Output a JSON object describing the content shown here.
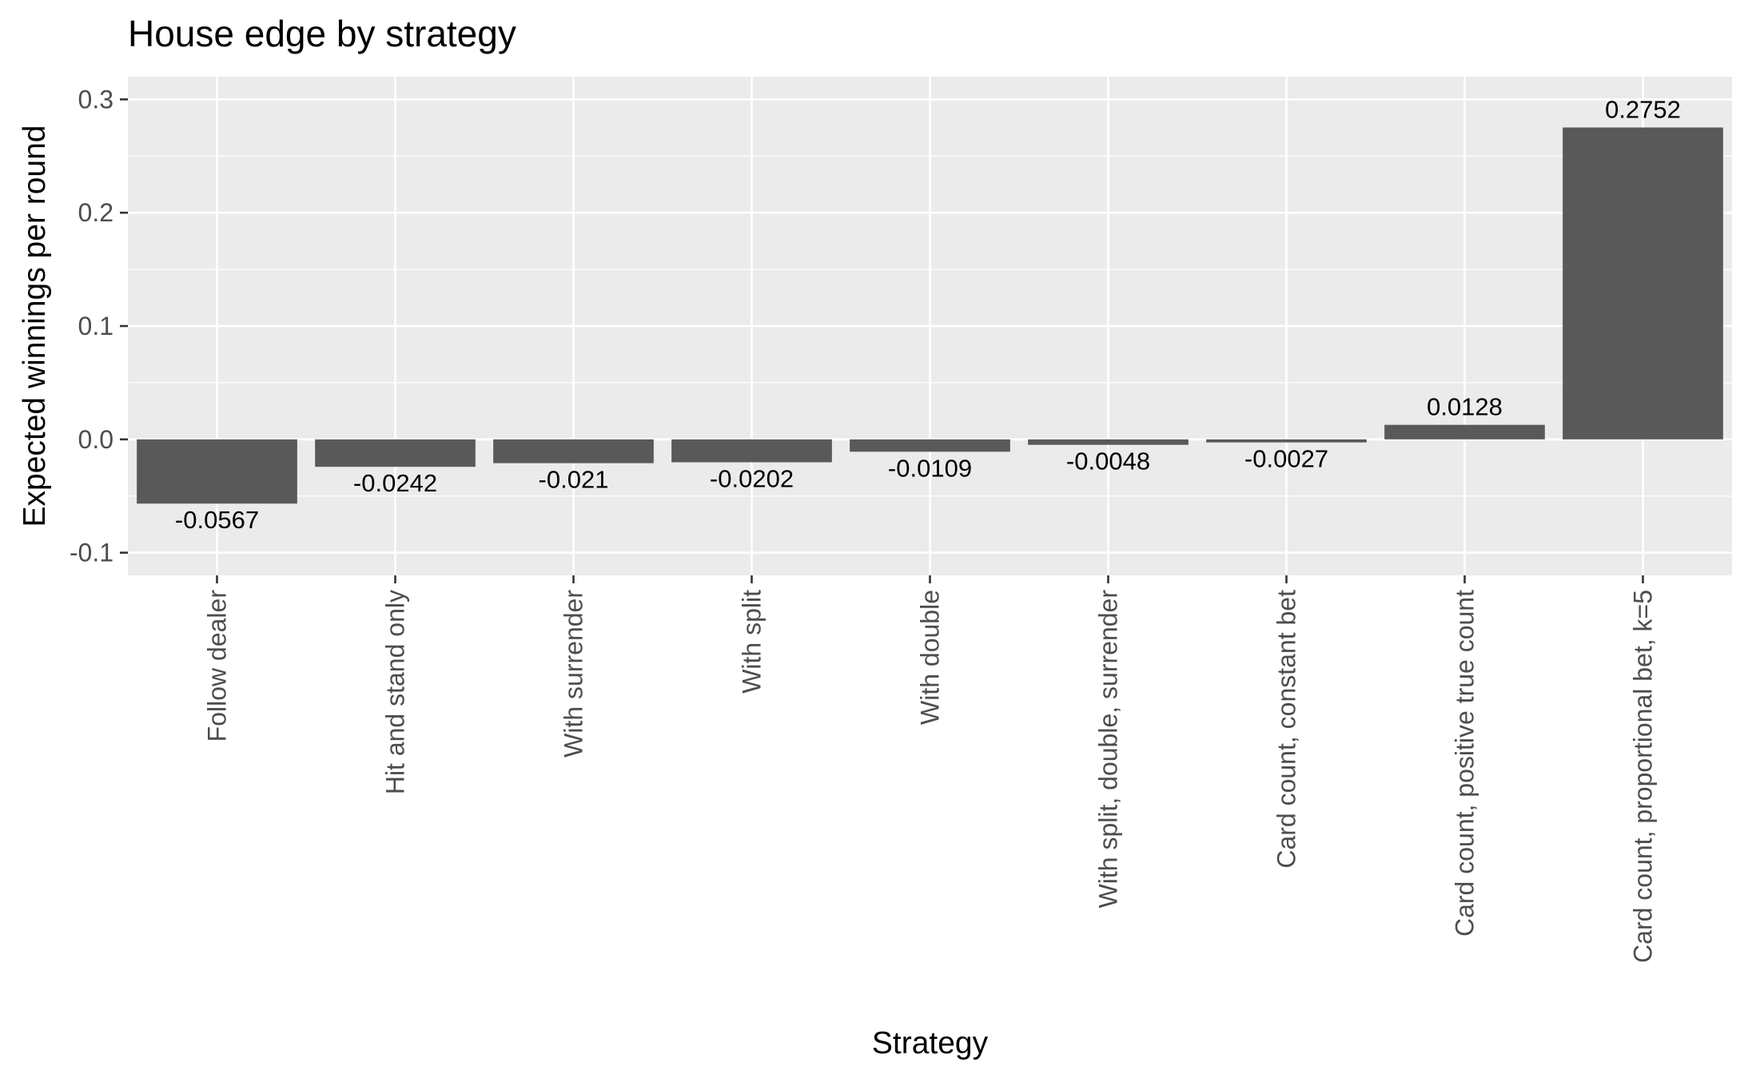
{
  "chart_data": {
    "type": "bar",
    "title": "House edge by strategy",
    "xlabel": "Strategy",
    "ylabel": "Expected winnings per round",
    "ylim": [
      -0.12,
      0.32
    ],
    "yticks": [
      -0.1,
      0.0,
      0.1,
      0.2,
      0.3
    ],
    "ytick_labels": [
      "-0.1",
      "0.0",
      "0.1",
      "0.2",
      "0.3"
    ],
    "categories": [
      "Follow dealer",
      "Hit and stand only",
      "With surrender",
      "With split",
      "With double",
      "With split, double, surrender",
      "Card count, constant bet",
      "Card count, positive true count",
      "Card count, proportional bet, k=5"
    ],
    "values": [
      -0.0567,
      -0.0242,
      -0.021,
      -0.0202,
      -0.0109,
      -0.0048,
      -0.0027,
      0.0128,
      0.2752
    ],
    "value_labels": [
      "-0.0567",
      "-0.0242",
      "-0.021",
      "-0.0202",
      "-0.0109",
      "-0.0048",
      "-0.0027",
      "0.0128",
      "0.2752"
    ],
    "grid": true,
    "legend": "none",
    "colors": {
      "bar": "#595959",
      "panel": "#ebebeb",
      "grid": "#ffffff",
      "tick_text": "#4d4d4d",
      "text": "#000000"
    }
  }
}
